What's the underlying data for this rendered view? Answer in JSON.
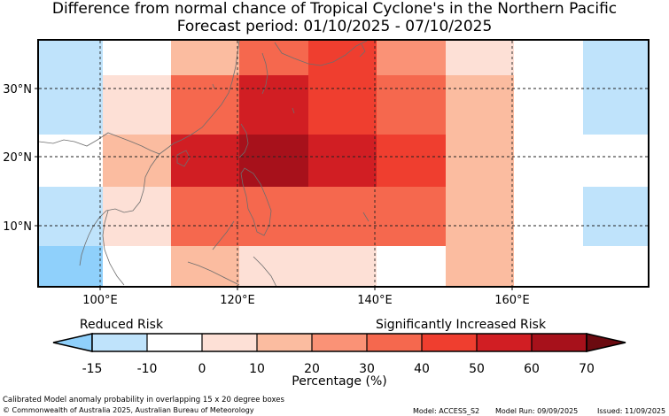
{
  "title": "Difference from normal chance of Tropical Cyclone's in the Northern Pacific",
  "subtitle": "Forecast period: 01/10/2025 - 07/10/2025",
  "map": {
    "lat_labels": [
      "30°N",
      "20°N",
      "10°N"
    ],
    "lon_labels": [
      "100°E",
      "120°E",
      "140°E",
      "160°E"
    ],
    "colors": {
      "c_m15": "#8fd0fb",
      "c_m10": "#bfe3fb",
      "c_0": "#ffffff",
      "c_10": "#fde0d6",
      "c_20": "#fbbca0",
      "c_30": "#fa9276",
      "c_40": "#f5684e",
      "c_50": "#ef3e2f",
      "c_60": "#d11e23",
      "c_70": "#a7111b"
    }
  },
  "legend": {
    "left_label": "Reduced Risk",
    "right_label": "Significantly Increased Risk",
    "ticks": [
      "-15",
      "-10",
      "0",
      "10",
      "20",
      "30",
      "40",
      "50",
      "60",
      "70"
    ],
    "colors": [
      "#8fd0fb",
      "#bfe3fb",
      "#ffffff",
      "#fde0d6",
      "#fbbca0",
      "#fa9276",
      "#f5684e",
      "#ef3e2f",
      "#d11e23",
      "#a7111b",
      "#6b0a10"
    ],
    "xlabel": "Percentage (%)"
  },
  "footer": {
    "note": "Calibrated Model anomaly probability in overlapping 15 x 20 degree boxes",
    "copyright": "© Commonwealth of Australia 2025, Australian Bureau of Meteorology",
    "model": "Model: ACCESS_S2",
    "run": "Model Run: 09/09/2025",
    "issued": "Issued: 11/09/2025"
  }
}
